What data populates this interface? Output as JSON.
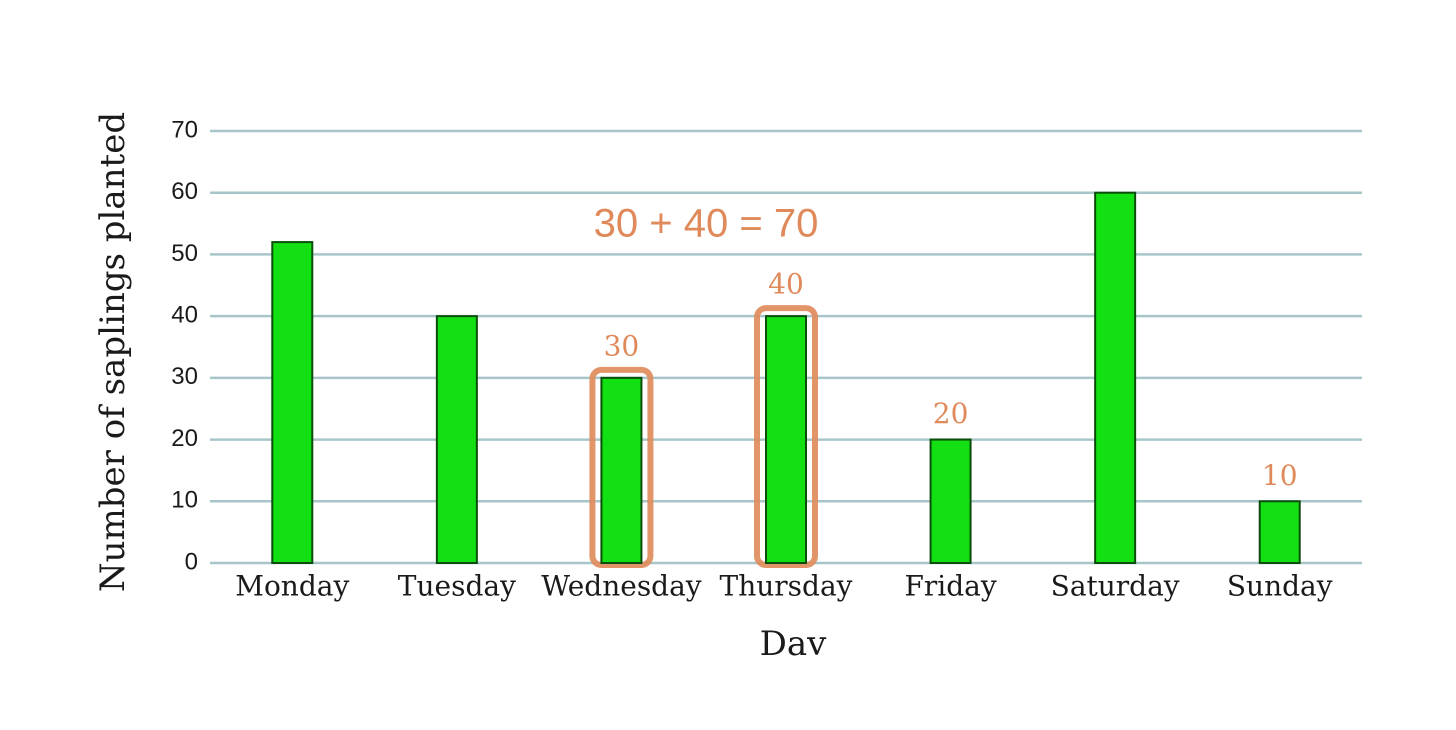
{
  "chart_data": {
    "type": "bar",
    "categories": [
      "Monday",
      "Tuesday",
      "Wednesday",
      "Thursday",
      "Friday",
      "Saturday",
      "Sunday"
    ],
    "values": [
      52,
      40,
      30,
      40,
      20,
      60,
      10
    ],
    "value_labels": [
      null,
      null,
      "30",
      "40",
      "20",
      null,
      "10"
    ],
    "highlight": [
      false,
      false,
      true,
      true,
      false,
      false,
      false
    ],
    "color": "#12e012",
    "highlight_color": "#e0895a",
    "x_label": "Dav",
    "y_label": "Number of saplings planted",
    "annotation": "30 + 40 = 70",
    "ylim": [
      0,
      70
    ],
    "yticks": [
      0,
      10,
      20,
      30,
      40,
      50,
      60,
      70
    ],
    "grid": true
  }
}
